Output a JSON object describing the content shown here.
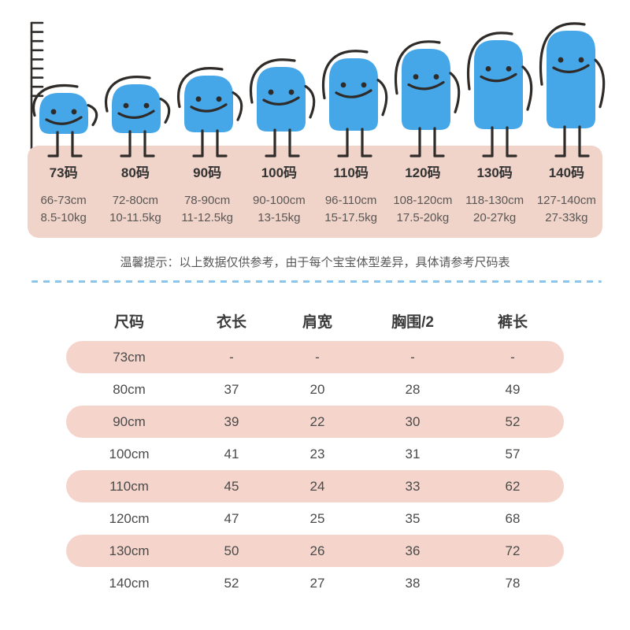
{
  "illustration": {
    "ruler_icon": "height-ruler",
    "character_icon": "blue-smiling-blob-child",
    "sizes": [
      {
        "code": "73码",
        "height_range": "66-73cm",
        "weight_range": "8.5-10kg"
      },
      {
        "code": "80码",
        "height_range": "72-80cm",
        "weight_range": "10-11.5kg"
      },
      {
        "code": "90码",
        "height_range": "78-90cm",
        "weight_range": "11-12.5kg"
      },
      {
        "code": "100码",
        "height_range": "90-100cm",
        "weight_range": "13-15kg"
      },
      {
        "code": "110码",
        "height_range": "96-110cm",
        "weight_range": "15-17.5kg"
      },
      {
        "code": "120码",
        "height_range": "108-120cm",
        "weight_range": "17.5-20kg"
      },
      {
        "code": "130码",
        "height_range": "118-130cm",
        "weight_range": "20-27kg"
      },
      {
        "code": "140码",
        "height_range": "127-140cm",
        "weight_range": "27-33kg"
      }
    ]
  },
  "notice": "温馨提示：以上数据仅供参考，由于每个宝宝体型差异，具体请参考尺码表",
  "size_table": {
    "columns": [
      "尺码",
      "衣长",
      "肩宽",
      "胸围/2",
      "裤长"
    ],
    "rows": [
      [
        "73cm",
        "-",
        "-",
        "-",
        "-"
      ],
      [
        "80cm",
        "37",
        "20",
        "28",
        "49"
      ],
      [
        "90cm",
        "39",
        "22",
        "30",
        "52"
      ],
      [
        "100cm",
        "41",
        "23",
        "31",
        "57"
      ],
      [
        "110cm",
        "45",
        "24",
        "33",
        "62"
      ],
      [
        "120cm",
        "47",
        "25",
        "35",
        "68"
      ],
      [
        "130cm",
        "50",
        "26",
        "36",
        "72"
      ],
      [
        "140cm",
        "52",
        "27",
        "38",
        "78"
      ]
    ]
  },
  "colors": {
    "character_blue": "#45A6E8",
    "panel_pink": "#F0D3C9",
    "row_pink": "#F5D5CB",
    "dash_blue": "#8AC5EC",
    "stroke_dark": "#2E2B28",
    "text_dark": "#3B3B3B",
    "text_gray": "#595757"
  }
}
